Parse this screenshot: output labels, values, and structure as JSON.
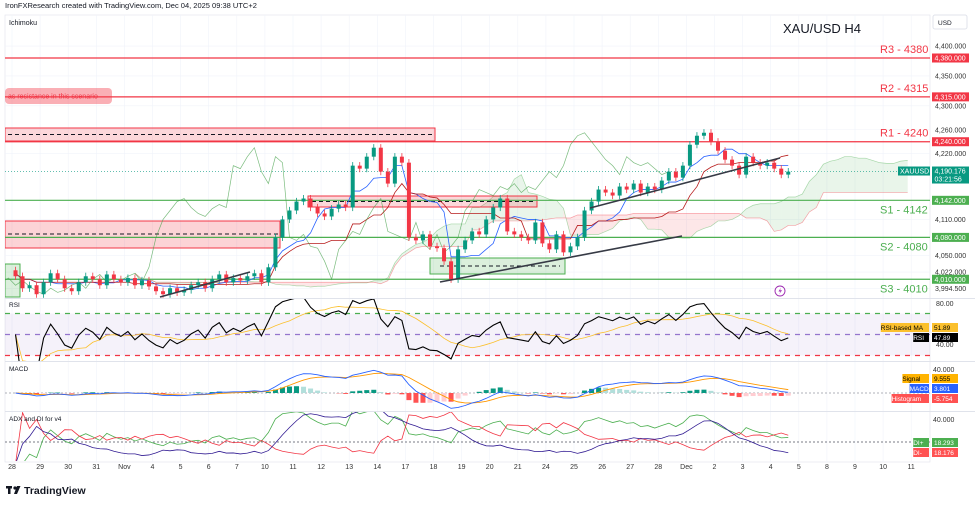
{
  "header": {
    "attribution": "IronFXResearch created with TradingView.com, Dec 04, 2025 09:38 UTC+2",
    "indicator_label": "Ichimoku",
    "symbol_title": "XAU/USD H4",
    "currency_button": "USD",
    "logo_text": "TradingView"
  },
  "colors": {
    "up": "#089981",
    "down": "#f23645",
    "resistance": "#f23645",
    "support": "#4caf50",
    "tenkan": "#2962ff",
    "kijun": "#b71c1c",
    "chikou": "#43a047",
    "rsi": "#000000",
    "rsi_ma": "#fbc02d",
    "macd": "#2962ff",
    "signal": "#ff9800",
    "di_plus": "#4caf50",
    "di_minus": "#f23645",
    "adx": "#311b92",
    "alert": "#9c27b0"
  },
  "levels": [
    {
      "label": "R3 - 4380",
      "price": 4380,
      "badge": "4,380.000",
      "kind": "resistance"
    },
    {
      "label": "R2 - 4315",
      "price": 4315,
      "badge": "4,315.000",
      "kind": "resistance"
    },
    {
      "label": "R1 - 4240",
      "price": 4240,
      "badge": "4,240.000",
      "kind": "resistance"
    },
    {
      "label": "S1 - 4142",
      "price": 4142,
      "badge": "4,142.000",
      "kind": "support"
    },
    {
      "label": "S2 - 4080",
      "price": 4080,
      "badge": "4,080.000",
      "kind": "support"
    },
    {
      "label": "S3 - 4010",
      "price": 4010,
      "badge": "4,010.000",
      "kind": "support"
    }
  ],
  "annotation": "as resistance in this scenario",
  "current_price": {
    "symbol": "XAUUSD",
    "price": 4190.176,
    "price_text": "4,190.176",
    "countdown": "03:21:56"
  },
  "price_ticks": [
    {
      "value": 4400,
      "text": "4,400.000"
    },
    {
      "value": 4350,
      "text": "4,350.000"
    },
    {
      "value": 4300,
      "text": "4,300.000"
    },
    {
      "value": 4260,
      "text": "4,260.000"
    },
    {
      "value": 4220,
      "text": "4,220.000"
    },
    {
      "value": 4110,
      "text": "4,110.000"
    },
    {
      "value": 4050,
      "text": "4,050.000"
    },
    {
      "value": 4022,
      "text": "4,022.000"
    },
    {
      "value": 3994.5,
      "text": "3,994.500"
    }
  ],
  "time_ticks": [
    "28",
    "29",
    "30",
    "31",
    "Nov",
    "4",
    "5",
    "6",
    "7",
    "10",
    "11",
    "12",
    "13",
    "14",
    "17",
    "18",
    "19",
    "20",
    "21",
    "24",
    "25",
    "26",
    "27",
    "28",
    "Dec",
    "2",
    "3",
    "4",
    "5",
    "8",
    "9",
    "10",
    "11"
  ],
  "rsi_pane": {
    "title": "RSI",
    "tick_high": "80.00",
    "tick_low": "40.00",
    "legend": [
      {
        "name": "RSI-based MA",
        "value": "51.89",
        "color": "#fbc02d",
        "text_color": "#000"
      },
      {
        "name": "RSI",
        "value": "47.89",
        "color": "#000000",
        "text_color": "#fff"
      }
    ]
  },
  "macd_pane": {
    "title": "MACD",
    "tick_high": "40.000",
    "legend": [
      {
        "name": "Signal",
        "value": "9.555",
        "color": "#ffb300",
        "text_color": "#000"
      },
      {
        "name": "MACD",
        "value": "3.801",
        "color": "#2962ff",
        "text_color": "#fff"
      },
      {
        "name": "Histogram",
        "value": "-5.754",
        "color": "#ff5252",
        "text_color": "#fff"
      }
    ]
  },
  "adx_pane": {
    "title": "ADX and DI for v4",
    "tick_high": "40.000",
    "legend": [
      {
        "name": "DI+",
        "value": "18.293",
        "color": "#4caf50",
        "text_color": "#fff"
      },
      {
        "name": "DI-",
        "value": "18.176",
        "color": "#ff5252",
        "text_color": "#fff"
      }
    ]
  },
  "chart_data": {
    "type": "candlestick",
    "title": "XAU/USD H4",
    "y_unit": "USD",
    "ylim": [
      3980,
      4410
    ],
    "grid": true,
    "days": [
      {
        "date": "Oct 28",
        "closes": [
          4015,
          3995,
          4000,
          3985
        ]
      },
      {
        "date": "Oct 29",
        "closes": [
          4005,
          4020,
          4010,
          3995
        ]
      },
      {
        "date": "Oct 30",
        "closes": [
          3990,
          4005,
          4015,
          4010
        ]
      },
      {
        "date": "Oct 31",
        "closes": [
          4000,
          4018,
          4010,
          4005
        ]
      },
      {
        "date": "Nov 3",
        "closes": [
          4012,
          4000,
          4008,
          3998
        ]
      },
      {
        "date": "Nov 4",
        "closes": [
          3990,
          3985,
          3995,
          3988
        ]
      },
      {
        "date": "Nov 5",
        "closes": [
          3992,
          4000,
          4005,
          3995
        ]
      },
      {
        "date": "Nov 6",
        "closes": [
          4010,
          4018,
          4005,
          4012
        ]
      },
      {
        "date": "Nov 7",
        "closes": [
          4008,
          4015,
          4020,
          4005
        ]
      },
      {
        "date": "Nov 10",
        "closes": [
          4030,
          4080,
          4110,
          4125
        ]
      },
      {
        "date": "Nov 11",
        "closes": [
          4140,
          4145,
          4130,
          4120
        ]
      },
      {
        "date": "Nov 12",
        "closes": [
          4115,
          4128,
          4135,
          4130
        ]
      },
      {
        "date": "Nov 13",
        "closes": [
          4200,
          4195,
          4215,
          4230
        ]
      },
      {
        "date": "Nov 14",
        "closes": [
          4190,
          4170,
          4215,
          4205
        ]
      },
      {
        "date": "Nov 17",
        "closes": [
          4080,
          4075,
          4085,
          4065
        ]
      },
      {
        "date": "Nov 18",
        "closes": [
          4062,
          4040,
          4010,
          4060
        ]
      },
      {
        "date": "Nov 19",
        "closes": [
          4075,
          4090,
          4085,
          4110
        ]
      },
      {
        "date": "Nov 20",
        "closes": [
          4130,
          4145,
          4090,
          4085
        ]
      },
      {
        "date": "Nov 21",
        "closes": [
          4080,
          4075,
          4105,
          4070
        ]
      },
      {
        "date": "Nov 24",
        "closes": [
          4060,
          4085,
          4055,
          4065
        ]
      },
      {
        "date": "Nov 25",
        "closes": [
          4080,
          4125,
          4140,
          4160
        ]
      },
      {
        "date": "Nov 26",
        "closes": [
          4155,
          4150,
          4165,
          4160
        ]
      },
      {
        "date": "Nov 27",
        "closes": [
          4170,
          4155,
          4165,
          4160
        ]
      },
      {
        "date": "Nov 28",
        "closes": [
          4175,
          4190,
          4180,
          4200
        ]
      },
      {
        "date": "Dec 1",
        "closes": [
          4235,
          4250,
          4255,
          4240
        ]
      },
      {
        "date": "Dec 2",
        "closes": [
          4225,
          4210,
          4200,
          4185
        ]
      },
      {
        "date": "Dec 3",
        "closes": [
          4215,
          4205,
          4200,
          4205
        ]
      },
      {
        "date": "Dec 4",
        "closes": [
          4195,
          4185,
          4190
        ]
      }
    ]
  }
}
